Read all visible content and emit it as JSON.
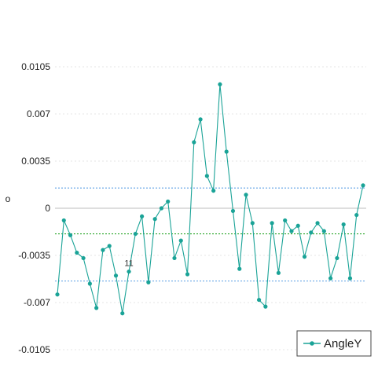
{
  "chart_data": {
    "type": "line",
    "ylabel": "o",
    "ylim": [
      -0.0105,
      0.0105
    ],
    "yticks": [
      0.0105,
      0.007,
      0.0035,
      0,
      -0.0035,
      -0.007,
      -0.0105
    ],
    "ytick_labels": [
      "0.0105",
      "0.007",
      "0.0035",
      "0",
      "-0.0035",
      "-0.007",
      "-0.0105"
    ],
    "grid": true,
    "legend_position": "bottom-right",
    "series": [
      {
        "name": "AngleY",
        "color": "#1aa397",
        "values": [
          -0.0064,
          -0.0009,
          -0.002,
          -0.0033,
          -0.0037,
          -0.0056,
          -0.0074,
          -0.0031,
          -0.0028,
          -0.005,
          -0.0078,
          -0.0047,
          -0.0019,
          -0.0006,
          -0.0055,
          -0.0008,
          0.0,
          0.0005,
          -0.0037,
          -0.0024,
          -0.0049,
          0.0049,
          0.0066,
          0.0024,
          0.0013,
          0.0092,
          0.0042,
          -0.0002,
          -0.0045,
          0.001,
          -0.0011,
          -0.0068,
          -0.0073,
          -0.0011,
          -0.0048,
          -0.0009,
          -0.0017,
          -0.0013,
          -0.0036,
          -0.0018,
          -0.0011,
          -0.0017,
          -0.0052,
          -0.0037,
          -0.0012,
          -0.0052,
          -0.0005,
          0.0017
        ]
      }
    ],
    "reference_lines": [
      {
        "value": 0.0015,
        "color": "#6aa8e6",
        "style": "dotted"
      },
      {
        "value": -0.0019,
        "color": "#2aa52a",
        "style": "dotted"
      },
      {
        "value": -0.0054,
        "color": "#6aa8e6",
        "style": "dotted"
      }
    ],
    "annotations": [
      {
        "text": "11",
        "point_index": 11
      }
    ]
  }
}
